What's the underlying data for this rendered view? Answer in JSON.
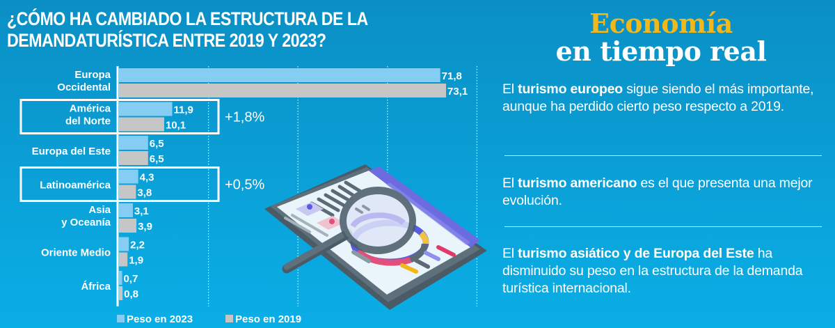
{
  "chart_data": {
    "type": "bar",
    "orientation": "horizontal",
    "title": "¿CÓMO HA CAMBIADO LA ESTRUCTURA DE LA DEMANDATURÍSTICA ENTRE 2019 Y 2023?",
    "title_lines": [
      "¿CÓMO HA CAMBIADO LA ESTRUCTURA DE LA",
      "DEMANDATURÍSTICA ENTRE 2019 Y 2023?"
    ],
    "categories": [
      [
        "Europa",
        "Occidental"
      ],
      [
        "América",
        "del Norte"
      ],
      [
        "Europa del Este"
      ],
      [
        "Latinoamérica"
      ],
      [
        "Asia",
        "y Oceanía"
      ],
      [
        "Oriente Medio"
      ],
      [
        "África"
      ]
    ],
    "series": [
      {
        "name": "Peso en 2023",
        "color": "#86cdf3",
        "values": [
          71.8,
          11.9,
          6.5,
          4.3,
          3.1,
          2.2,
          0.7
        ],
        "labels": [
          "71,8",
          "11,9",
          "6,5",
          "4,3",
          "3,1",
          "2,2",
          "0,7"
        ]
      },
      {
        "name": "Peso en 2019",
        "color": "#c6c6c6",
        "values": [
          73.1,
          10.1,
          6.5,
          3.8,
          3.9,
          1.9,
          0.8
        ],
        "labels": [
          "73,1",
          "10,1",
          "6,5",
          "3,8",
          "3,9",
          "1,9",
          "0,8"
        ]
      }
    ],
    "highlights": [
      {
        "category_index": 1,
        "delta": "+1,8%"
      },
      {
        "category_index": 3,
        "delta": "+0,5%"
      }
    ],
    "xlim": [
      0,
      80
    ],
    "gridlines_at": [
      20,
      40,
      60,
      80
    ],
    "grid": "dotted vertical",
    "xlabel": "",
    "ylabel": "",
    "legend": {
      "placement": "bottom-left",
      "entries": [
        "Peso en 2023",
        "Peso en 2019"
      ]
    }
  },
  "brand": {
    "line1": "Economía",
    "line2": "en tiempo real",
    "accent_color": "#f2b81b"
  },
  "notes": [
    {
      "pre": "El ",
      "bold": "turismo europeo",
      "post": " sigue siendo el más importante, aunque ha perdido cierto peso respecto a 2019."
    },
    {
      "pre": "El ",
      "bold": "turismo americano",
      "post": " es el que presenta una mejor evolución."
    },
    {
      "pre": "El ",
      "bold": "turismo asiático y de Europa del Este",
      "post": " ha disminuido su peso en la estructura de la demanda turística internacional."
    }
  ],
  "illustration": {
    "icon": "tablet-with-magnifying-glass-icon"
  }
}
